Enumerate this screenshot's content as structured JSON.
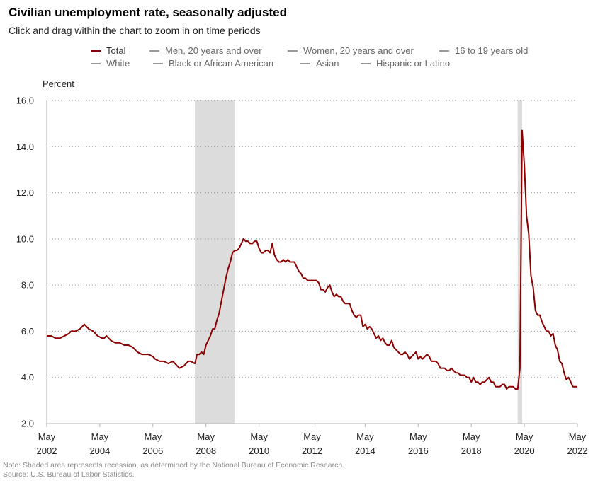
{
  "header": {
    "title": "Civilian unemployment rate, seasonally adjusted",
    "subtitle": "Click and drag within the chart to zoom in on time periods"
  },
  "legend": {
    "row1": [
      {
        "label": "Total",
        "color": "#8b0000",
        "active": true
      },
      {
        "label": "Men, 20 years and over",
        "color": "#999999",
        "active": false
      },
      {
        "label": "Women, 20 years and over",
        "color": "#999999",
        "active": false
      },
      {
        "label": "16 to 19 years old",
        "color": "#999999",
        "active": false
      }
    ],
    "row2": [
      {
        "label": "White",
        "color": "#999999",
        "active": false
      },
      {
        "label": "Black or African American",
        "color": "#999999",
        "active": false
      },
      {
        "label": "Asian",
        "color": "#999999",
        "active": false
      },
      {
        "label": "Hispanic or Latino",
        "color": "#999999",
        "active": false
      }
    ]
  },
  "footer": {
    "note": "Note: Shaded area represents recession, as determined by the National Bureau of Economic Research.",
    "source": "Source: U.S. Bureau of Labor Statistics."
  },
  "chart_data": {
    "type": "line",
    "title": "Civilian unemployment rate, seasonally adjusted",
    "ylabel": "Percent",
    "xlabel": "",
    "ylim": [
      2.0,
      16.0
    ],
    "yticks": [
      "2.0",
      "4.0",
      "6.0",
      "8.0",
      "10.0",
      "12.0",
      "14.0",
      "16.0"
    ],
    "xlim": [
      "2002-05",
      "2022-05"
    ],
    "xticks": [
      {
        "date": "2002-05",
        "line1": "May",
        "line2": "2002"
      },
      {
        "date": "2004-05",
        "line1": "May",
        "line2": "2004"
      },
      {
        "date": "2006-05",
        "line1": "May",
        "line2": "2006"
      },
      {
        "date": "2008-05",
        "line1": "May",
        "line2": "2008"
      },
      {
        "date": "2010-05",
        "line1": "May",
        "line2": "2010"
      },
      {
        "date": "2012-05",
        "line1": "May",
        "line2": "2012"
      },
      {
        "date": "2014-05",
        "line1": "May",
        "line2": "2014"
      },
      {
        "date": "2016-05",
        "line1": "May",
        "line2": "2016"
      },
      {
        "date": "2018-05",
        "line1": "May",
        "line2": "2018"
      },
      {
        "date": "2020-05",
        "line1": "May",
        "line2": "2020"
      },
      {
        "date": "2022-05",
        "line1": "May",
        "line2": "2022"
      }
    ],
    "grid": "horizontal-dotted",
    "legend_position": "top",
    "recessions": [
      {
        "start": "2007-12",
        "end": "2009-06"
      },
      {
        "start": "2020-02",
        "end": "2020-04"
      }
    ],
    "series": [
      {
        "name": "Total",
        "color": "#8b0000",
        "points": [
          [
            "2002-05",
            5.8
          ],
          [
            "2002-07",
            5.8
          ],
          [
            "2002-09",
            5.7
          ],
          [
            "2002-11",
            5.7
          ],
          [
            "2003-01",
            5.8
          ],
          [
            "2003-03",
            5.9
          ],
          [
            "2003-04",
            6.0
          ],
          [
            "2003-06",
            6.0
          ],
          [
            "2003-08",
            6.1
          ],
          [
            "2003-10",
            6.3
          ],
          [
            "2003-12",
            6.1
          ],
          [
            "2004-02",
            6.0
          ],
          [
            "2004-04",
            5.8
          ],
          [
            "2004-06",
            5.7
          ],
          [
            "2004-07",
            5.7
          ],
          [
            "2004-08",
            5.8
          ],
          [
            "2004-10",
            5.6
          ],
          [
            "2004-12",
            5.5
          ],
          [
            "2005-02",
            5.5
          ],
          [
            "2005-04",
            5.4
          ],
          [
            "2005-06",
            5.4
          ],
          [
            "2005-08",
            5.3
          ],
          [
            "2005-10",
            5.1
          ],
          [
            "2005-12",
            5.0
          ],
          [
            "2006-01",
            5.0
          ],
          [
            "2006-03",
            5.0
          ],
          [
            "2006-05",
            4.9
          ],
          [
            "2006-06",
            4.8
          ],
          [
            "2006-08",
            4.7
          ],
          [
            "2006-10",
            4.7
          ],
          [
            "2006-12",
            4.6
          ],
          [
            "2007-02",
            4.7
          ],
          [
            "2007-04",
            4.5
          ],
          [
            "2007-05",
            4.4
          ],
          [
            "2007-07",
            4.5
          ],
          [
            "2007-08",
            4.6
          ],
          [
            "2007-09",
            4.7
          ],
          [
            "2007-10",
            4.7
          ],
          [
            "2007-12",
            4.6
          ],
          [
            "2008-01",
            5.0
          ],
          [
            "2008-02",
            5.0
          ],
          [
            "2008-03",
            5.1
          ],
          [
            "2008-04",
            5.0
          ],
          [
            "2008-05",
            5.4
          ],
          [
            "2008-06",
            5.6
          ],
          [
            "2008-07",
            5.8
          ],
          [
            "2008-08",
            6.1
          ],
          [
            "2008-09",
            6.1
          ],
          [
            "2008-10",
            6.5
          ],
          [
            "2008-11",
            6.8
          ],
          [
            "2008-12",
            7.3
          ],
          [
            "2009-01",
            7.8
          ],
          [
            "2009-02",
            8.3
          ],
          [
            "2009-03",
            8.7
          ],
          [
            "2009-04",
            9.0
          ],
          [
            "2009-05",
            9.4
          ],
          [
            "2009-06",
            9.5
          ],
          [
            "2009-07",
            9.5
          ],
          [
            "2009-08",
            9.6
          ],
          [
            "2009-09",
            9.8
          ],
          [
            "2009-10",
            10.0
          ],
          [
            "2009-11",
            9.9
          ],
          [
            "2009-12",
            9.9
          ],
          [
            "2010-01",
            9.8
          ],
          [
            "2010-02",
            9.8
          ],
          [
            "2010-03",
            9.9
          ],
          [
            "2010-04",
            9.9
          ],
          [
            "2010-05",
            9.6
          ],
          [
            "2010-06",
            9.4
          ],
          [
            "2010-07",
            9.4
          ],
          [
            "2010-08",
            9.5
          ],
          [
            "2010-09",
            9.5
          ],
          [
            "2010-10",
            9.4
          ],
          [
            "2010-11",
            9.8
          ],
          [
            "2010-12",
            9.3
          ],
          [
            "2011-01",
            9.1
          ],
          [
            "2011-02",
            9.0
          ],
          [
            "2011-03",
            9.0
          ],
          [
            "2011-04",
            9.1
          ],
          [
            "2011-05",
            9.0
          ],
          [
            "2011-06",
            9.1
          ],
          [
            "2011-07",
            9.0
          ],
          [
            "2011-08",
            9.0
          ],
          [
            "2011-09",
            9.0
          ],
          [
            "2011-10",
            8.8
          ],
          [
            "2011-11",
            8.6
          ],
          [
            "2011-12",
            8.5
          ],
          [
            "2012-01",
            8.3
          ],
          [
            "2012-02",
            8.3
          ],
          [
            "2012-03",
            8.2
          ],
          [
            "2012-04",
            8.2
          ],
          [
            "2012-05",
            8.2
          ],
          [
            "2012-06",
            8.2
          ],
          [
            "2012-07",
            8.2
          ],
          [
            "2012-08",
            8.1
          ],
          [
            "2012-09",
            7.8
          ],
          [
            "2012-10",
            7.8
          ],
          [
            "2012-11",
            7.7
          ],
          [
            "2012-12",
            7.9
          ],
          [
            "2013-01",
            8.0
          ],
          [
            "2013-02",
            7.7
          ],
          [
            "2013-03",
            7.5
          ],
          [
            "2013-04",
            7.6
          ],
          [
            "2013-05",
            7.5
          ],
          [
            "2013-06",
            7.5
          ],
          [
            "2013-07",
            7.3
          ],
          [
            "2013-08",
            7.2
          ],
          [
            "2013-09",
            7.2
          ],
          [
            "2013-10",
            7.2
          ],
          [
            "2013-11",
            6.9
          ],
          [
            "2013-12",
            6.7
          ],
          [
            "2014-01",
            6.6
          ],
          [
            "2014-02",
            6.7
          ],
          [
            "2014-03",
            6.7
          ],
          [
            "2014-04",
            6.2
          ],
          [
            "2014-05",
            6.3
          ],
          [
            "2014-06",
            6.1
          ],
          [
            "2014-07",
            6.2
          ],
          [
            "2014-08",
            6.1
          ],
          [
            "2014-09",
            5.9
          ],
          [
            "2014-10",
            5.7
          ],
          [
            "2014-11",
            5.8
          ],
          [
            "2014-12",
            5.6
          ],
          [
            "2015-01",
            5.7
          ],
          [
            "2015-02",
            5.5
          ],
          [
            "2015-03",
            5.4
          ],
          [
            "2015-04",
            5.4
          ],
          [
            "2015-05",
            5.6
          ],
          [
            "2015-06",
            5.3
          ],
          [
            "2015-07",
            5.2
          ],
          [
            "2015-08",
            5.1
          ],
          [
            "2015-09",
            5.0
          ],
          [
            "2015-10",
            5.0
          ],
          [
            "2015-11",
            5.1
          ],
          [
            "2015-12",
            5.0
          ],
          [
            "2016-01",
            4.8
          ],
          [
            "2016-02",
            4.9
          ],
          [
            "2016-03",
            5.0
          ],
          [
            "2016-04",
            5.1
          ],
          [
            "2016-05",
            4.8
          ],
          [
            "2016-06",
            4.9
          ],
          [
            "2016-07",
            4.8
          ],
          [
            "2016-08",
            4.9
          ],
          [
            "2016-09",
            5.0
          ],
          [
            "2016-10",
            4.9
          ],
          [
            "2016-11",
            4.7
          ],
          [
            "2016-12",
            4.7
          ],
          [
            "2017-01",
            4.7
          ],
          [
            "2017-02",
            4.6
          ],
          [
            "2017-03",
            4.4
          ],
          [
            "2017-04",
            4.4
          ],
          [
            "2017-05",
            4.4
          ],
          [
            "2017-06",
            4.3
          ],
          [
            "2017-07",
            4.3
          ],
          [
            "2017-08",
            4.4
          ],
          [
            "2017-09",
            4.3
          ],
          [
            "2017-10",
            4.2
          ],
          [
            "2017-11",
            4.2
          ],
          [
            "2017-12",
            4.1
          ],
          [
            "2018-01",
            4.1
          ],
          [
            "2018-02",
            4.1
          ],
          [
            "2018-03",
            4.0
          ],
          [
            "2018-04",
            4.0
          ],
          [
            "2018-05",
            3.8
          ],
          [
            "2018-06",
            4.0
          ],
          [
            "2018-07",
            3.8
          ],
          [
            "2018-08",
            3.8
          ],
          [
            "2018-09",
            3.7
          ],
          [
            "2018-10",
            3.8
          ],
          [
            "2018-11",
            3.8
          ],
          [
            "2018-12",
            3.9
          ],
          [
            "2019-01",
            4.0
          ],
          [
            "2019-02",
            3.8
          ],
          [
            "2019-03",
            3.8
          ],
          [
            "2019-04",
            3.6
          ],
          [
            "2019-05",
            3.6
          ],
          [
            "2019-06",
            3.6
          ],
          [
            "2019-07",
            3.7
          ],
          [
            "2019-08",
            3.7
          ],
          [
            "2019-09",
            3.5
          ],
          [
            "2019-10",
            3.6
          ],
          [
            "2019-11",
            3.6
          ],
          [
            "2019-12",
            3.6
          ],
          [
            "2020-01",
            3.5
          ],
          [
            "2020-02",
            3.5
          ],
          [
            "2020-03",
            4.4
          ],
          [
            "2020-04",
            14.7
          ],
          [
            "2020-05",
            13.2
          ],
          [
            "2020-06",
            11.0
          ],
          [
            "2020-07",
            10.2
          ],
          [
            "2020-08",
            8.4
          ],
          [
            "2020-09",
            7.9
          ],
          [
            "2020-10",
            6.9
          ],
          [
            "2020-11",
            6.7
          ],
          [
            "2020-12",
            6.7
          ],
          [
            "2021-01",
            6.4
          ],
          [
            "2021-02",
            6.2
          ],
          [
            "2021-03",
            6.0
          ],
          [
            "2021-04",
            6.0
          ],
          [
            "2021-05",
            5.8
          ],
          [
            "2021-06",
            5.9
          ],
          [
            "2021-07",
            5.4
          ],
          [
            "2021-08",
            5.2
          ],
          [
            "2021-09",
            4.7
          ],
          [
            "2021-10",
            4.6
          ],
          [
            "2021-11",
            4.2
          ],
          [
            "2021-12",
            3.9
          ],
          [
            "2022-01",
            4.0
          ],
          [
            "2022-02",
            3.8
          ],
          [
            "2022-03",
            3.6
          ],
          [
            "2022-04",
            3.6
          ],
          [
            "2022-05",
            3.6
          ]
        ]
      }
    ]
  }
}
